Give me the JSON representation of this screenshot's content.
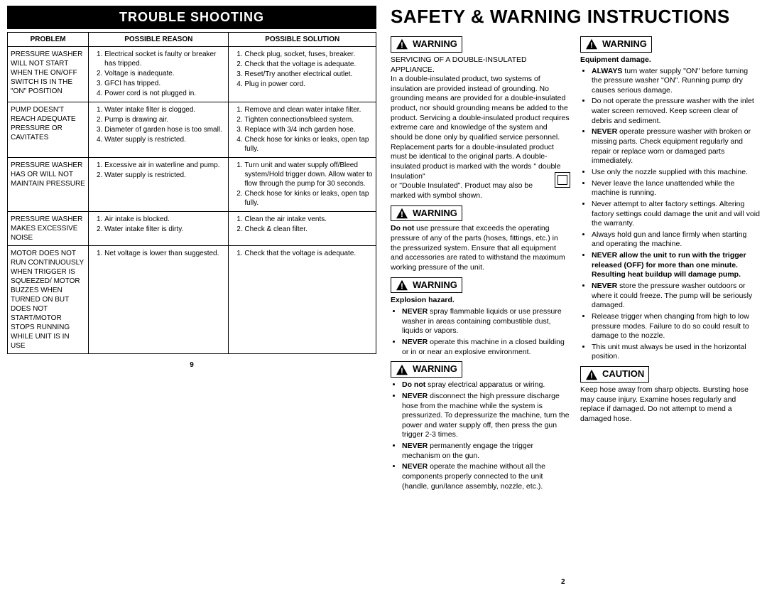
{
  "left": {
    "header": "TROUBLE SHOOTING",
    "cols": {
      "c1": "PROBLEM",
      "c2": "POSSIBLE REASON",
      "c3": "POSSIBLE SOLUTION"
    },
    "rows": [
      {
        "problem": "PRESSURE WASHER WILL NOT START WHEN THE ON/OFF SWITCH IS IN THE \"ON\" POSITION",
        "reason": [
          "Electrical socket is faulty or breaker has tripped.",
          "Voltage is inadequate.",
          "GFCI has tripped.",
          "Power cord is not plugged in."
        ],
        "solution": [
          "Check plug, socket, fuses, breaker.",
          "Check that the voltage is adequate.",
          "Reset/Try another electrical outlet.",
          "Plug in power cord."
        ]
      },
      {
        "problem": "PUMP DOESN'T REACH ADEQUATE PRESSURE OR CAVITATES",
        "reason": [
          "Water intake filter is clogged.",
          "Pump is drawing air.",
          "Diameter of garden hose is too small.",
          "Water supply is restricted."
        ],
        "solution": [
          "Remove and clean water intake filter.",
          "Tighten connections/bleed system.",
          "Replace with 3/4 inch garden hose.",
          "Check hose for kinks or leaks, open tap fully."
        ]
      },
      {
        "problem": "PRESSURE WASHER HAS OR WILL NOT MAINTAIN PRESSURE",
        "reason": [
          "Excessive air in waterline and pump.",
          "Water supply is restricted."
        ],
        "solution": [
          "Turn unit and water supply off/Bleed system/Hold trigger down. Allow water to flow through the pump for 30 seconds.",
          "Check hose for kinks or leaks, open tap fully."
        ]
      },
      {
        "problem": "PRESSURE WASHER MAKES EXCESSIVE NOISE",
        "reason": [
          "Air intake is blocked.",
          "Water intake filter is dirty."
        ],
        "solution": [
          "Clean the air intake vents.",
          "Check & clean filter."
        ]
      },
      {
        "problem": "MOTOR DOES NOT RUN CONTINUOUSLY WHEN TRIGGER IS SQUEEZED/ MOTOR BUZZES WHEN TURNED ON BUT DOES NOT START/MOTOR STOPS RUNNING WHILE UNIT IS IN USE",
        "reason": [
          "Net voltage is lower than suggested."
        ],
        "solution": [
          "Check that the voltage is adequate."
        ]
      }
    ],
    "pagenum": "9"
  },
  "right": {
    "title": "SAFETY & WARNING INSTRUCTIONS",
    "pagenum": "2",
    "warn1_label": "WARNING",
    "warn1_text": "SERVICING OF A DOUBLE-INSULATED APPLIANCE.\nIn a double-insulated product, two systems of insulation are provided instead of grounding. No grounding means are provided for a double-insulated product, nor should grounding means be added to the product. Servicing a double-insulated product requires extreme care and knowledge of the system and should be done only by qualified service personnel. Replacement parts for a double-insulated product must be identical to the original parts. A double-insulated product is marked with the words \" double Insulation\" or \"Double Insulated\". Product may also be marked with symbol shown.",
    "warn2_label": "WARNING",
    "warn2_pre": "Do not",
    "warn2_text": " use pressure that exceeds the operating pressure of any of the parts (hoses, fittings, etc.) in the pressurized system. Ensure that all equipment and accessories are rated to withstand the maximum working pressure of the unit.",
    "warn3_label": "WARNING",
    "warn3_sub": "Explosion hazard.",
    "warn3_items": [
      {
        "b": "NEVER",
        "t": " spray flammable liquids or use pressure washer in areas containing combustible dust, liquids or vapors."
      },
      {
        "b": "NEVER",
        "t": " operate this machine in a closed building or in or near an explosive environment."
      }
    ],
    "warn4_label": "WARNING",
    "warn4_items": [
      {
        "b": "Do not",
        "t": " spray electrical apparatus or wiring."
      },
      {
        "b": "NEVER",
        "t": " disconnect the high pressure discharge hose from the machine while the system is pressurized. To depressurize the machine, turn the power and water supply off, then press the gun trigger 2-3 times."
      },
      {
        "b": "NEVER",
        "t": " permanently engage the trigger mechanism on the gun."
      },
      {
        "b": "NEVER",
        "t": " operate the machine without all the components properly connected to the unit (handle, gun/lance assembly, nozzle, etc.)."
      }
    ],
    "warn5_label": "WARNING",
    "warn5_sub": "Equipment damage.",
    "warn5_items": [
      {
        "b": "ALWAYS",
        "t": " turn water supply \"ON\" before turning the pressure washer \"ON\". Running pump dry causes serious damage."
      },
      {
        "b": "",
        "t": "Do not operate the pressure washer with the inlet water screen removed. Keep screen clear of debris and sediment."
      },
      {
        "b": "NEVER",
        "t": " operate pressure washer with broken or missing parts. Check equipment regularly and repair or replace worn or damaged parts immediately."
      },
      {
        "b": "",
        "t": "Use only the nozzle supplied with this machine."
      },
      {
        "b": "",
        "t": "Never leave the lance unattended while the machine is running."
      },
      {
        "b": "",
        "t": "Never attempt to alter factory settings. Altering factory settings could damage the unit and will void the warranty."
      },
      {
        "b": "",
        "t": "Always hold gun and lance firmly when starting and operating the machine."
      },
      {
        "b": "NEVER allow the unit to run with the trigger released (OFF) for more than one minute. Resulting heat buildup will damage pump.",
        "t": "",
        "allbold": true
      },
      {
        "b": "NEVER",
        "t": " store the pressure washer outdoors or where it could freeze. The pump will be seriously damaged."
      },
      {
        "b": "",
        "t": "Release trigger when changing from high to low pressure modes. Failure to do so could result to damage to the nozzle."
      },
      {
        "b": "",
        "t": "This unit must always be used in the horizontal position."
      }
    ],
    "caution_label": "CAUTION",
    "caution_text": "Keep hose away from sharp objects. Bursting hose may cause injury. Examine hoses regularly and replace if damaged. Do not attempt to mend a damaged hose."
  }
}
